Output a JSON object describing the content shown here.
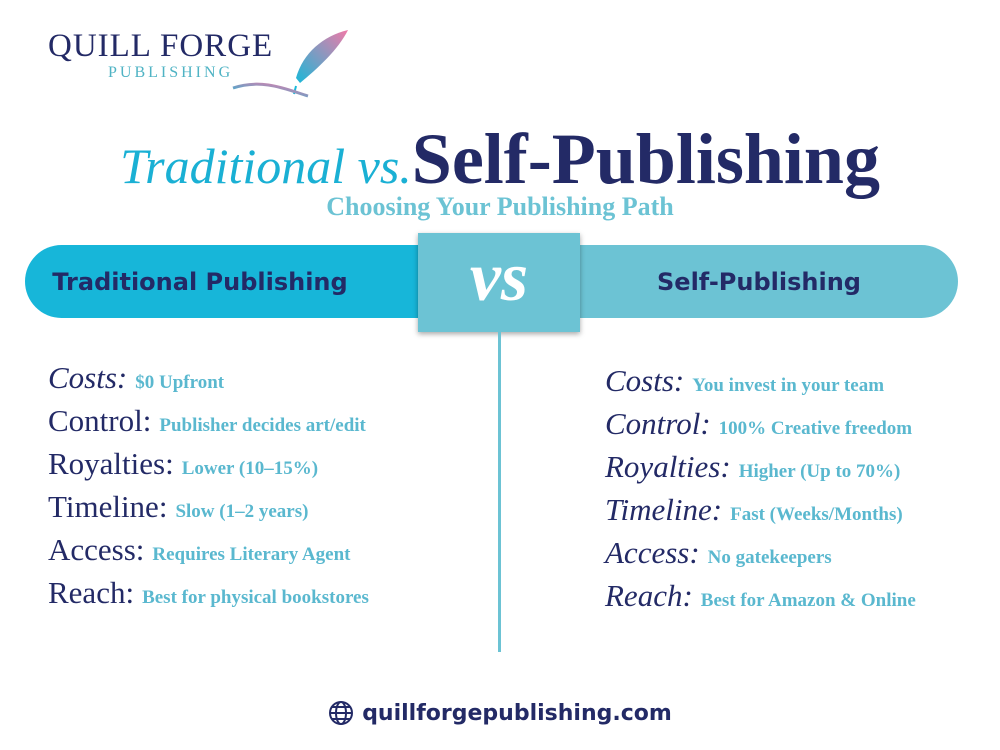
{
  "logo": {
    "name": "QUILL FORGE",
    "sub": "PUBLISHING"
  },
  "title": {
    "part1": "Traditional vs.",
    "part2": "Self-Publishing",
    "subtitle": "Choosing Your Publishing Path"
  },
  "header": {
    "left": "Traditional Publishing",
    "vs": "vs",
    "right": "Self-Publishing"
  },
  "left": [
    {
      "label": "Costs:",
      "value": "$0 Upfront"
    },
    {
      "label": "Control:",
      "value": "Publisher decides art/edit"
    },
    {
      "label": "Royalties:",
      "value": "Lower (10–15%)"
    },
    {
      "label": "Timeline:",
      "value": "Slow (1–2 years)"
    },
    {
      "label": "Access:",
      "value": "Requires Literary Agent"
    },
    {
      "label": "Reach:",
      "value": "Best for physical bookstores"
    }
  ],
  "right": [
    {
      "label": "Costs:",
      "value": "You invest in your team"
    },
    {
      "label": "Control:",
      "value": "100% Creative freedom"
    },
    {
      "label": "Royalties:",
      "value": "Higher (Up to 70%)"
    },
    {
      "label": "Timeline:",
      "value": "Fast (Weeks/Months)"
    },
    {
      "label": "Access:",
      "value": "No gatekeepers"
    },
    {
      "label": "Reach:",
      "value": "Best for Amazon & Online"
    }
  ],
  "footer": {
    "icon": "globe-icon",
    "url": "quillforgepublishing.com"
  },
  "colors": {
    "navy": "#232a66",
    "cyan": "#17b6d9",
    "teal": "#6cc3d4"
  }
}
